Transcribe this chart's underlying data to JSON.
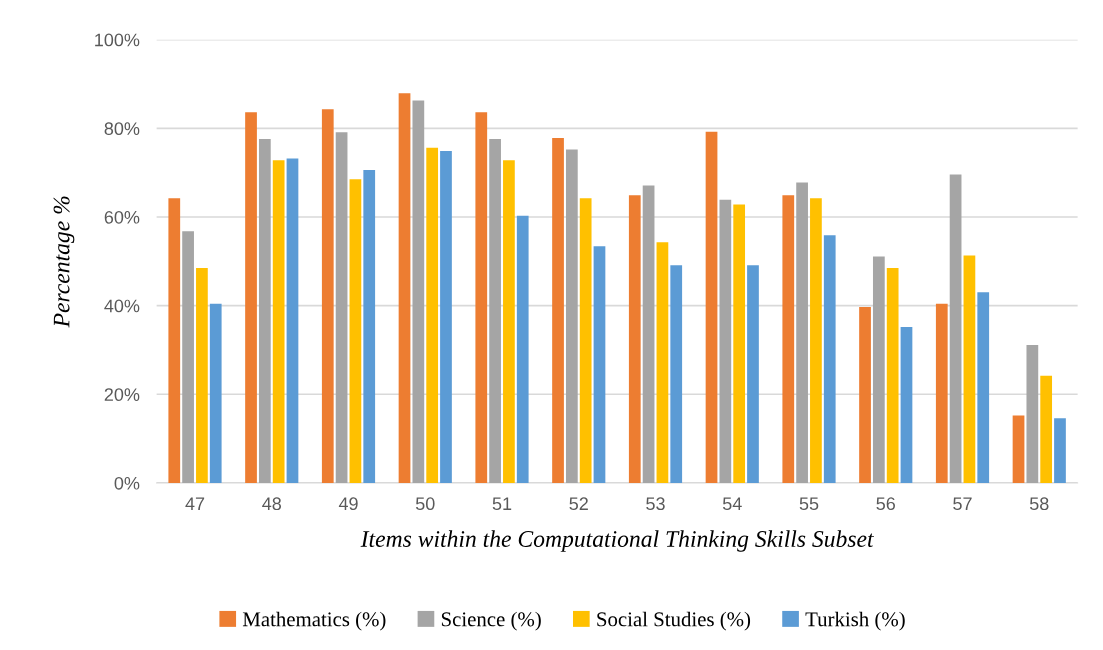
{
  "chart_data": {
    "type": "bar",
    "xlabel": "Items within the Computational Thinking Skills Subset",
    "ylabel": "Percentage %",
    "categories": [
      "47",
      "48",
      "49",
      "50",
      "51",
      "52",
      "53",
      "54",
      "55",
      "56",
      "57",
      "58"
    ],
    "series": [
      {
        "name": "Mathematics (%)",
        "color": "#ed7d31",
        "values": [
          64.2,
          83.6,
          84.3,
          87.9,
          83.6,
          77.8,
          64.9,
          79.2,
          64.9,
          39.7,
          40.4,
          15.2
        ]
      },
      {
        "name": "Science (%)",
        "color": "#a5a5a5",
        "values": [
          56.8,
          77.6,
          79.1,
          86.3,
          77.6,
          75.2,
          67.1,
          63.9,
          67.8,
          51.1,
          69.6,
          31.1
        ]
      },
      {
        "name": "Social Studies (%)",
        "color": "#ffc000",
        "values": [
          48.5,
          72.8,
          68.5,
          75.6,
          72.8,
          64.2,
          54.3,
          62.8,
          64.2,
          48.5,
          51.3,
          24.2
        ]
      },
      {
        "name": "Turkish (%)",
        "color": "#5b9bd5",
        "values": [
          40.4,
          73.2,
          70.6,
          74.9,
          60.3,
          53.4,
          49.1,
          49.1,
          55.9,
          35.2,
          43.0,
          14.6
        ]
      }
    ],
    "ylim": [
      0,
      100
    ],
    "yticks": [
      {
        "value": 0,
        "label": "0%"
      },
      {
        "value": 20,
        "label": "20%"
      },
      {
        "value": 40,
        "label": "40%"
      },
      {
        "value": 60,
        "label": "60%"
      },
      {
        "value": 80,
        "label": "80%"
      },
      {
        "value": 100,
        "label": "100%"
      }
    ],
    "grid": "y",
    "legend": "bottom"
  }
}
